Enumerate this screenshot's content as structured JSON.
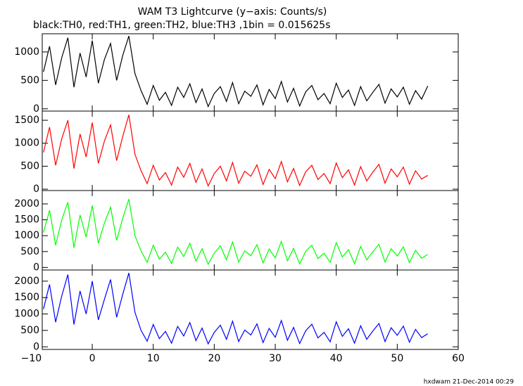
{
  "chart_data": [
    {
      "type": "line",
      "title": "WAM T3 Lightcurve (y−axis: Counts/s)",
      "subtitle": "black:TH0, red:TH1, green:TH2, blue:TH3 ,1bin = 0.015625s",
      "x": [
        -8,
        -7,
        -6,
        -5,
        -4,
        -3,
        -2,
        -1,
        0,
        1,
        2,
        3,
        4,
        5,
        6,
        7,
        8,
        9,
        10,
        11,
        12,
        13,
        14,
        15,
        16,
        17,
        18,
        19,
        20,
        21,
        22,
        23,
        24,
        25,
        26,
        27,
        28,
        29,
        30,
        31,
        32,
        33,
        34,
        35,
        36,
        37,
        38,
        39,
        40,
        41,
        42,
        43,
        44,
        45,
        46,
        47,
        48,
        49,
        50,
        51,
        52,
        53,
        54,
        55
      ],
      "values": [
        650,
        1100,
        420,
        900,
        1250,
        380,
        980,
        560,
        1200,
        450,
        870,
        1150,
        500,
        940,
        1280,
        620,
        320,
        80,
        410,
        150,
        290,
        60,
        380,
        200,
        440,
        110,
        350,
        40,
        270,
        390,
        130,
        460,
        90,
        310,
        220,
        420,
        70,
        340,
        180,
        480,
        120,
        360,
        50,
        300,
        410,
        160,
        270,
        90,
        450,
        200,
        330,
        60,
        390,
        140,
        290,
        430,
        100,
        350,
        210,
        380,
        80,
        320,
        170,
        400
      ],
      "color": "#000000",
      "xlim": [
        -8.2,
        60
      ],
      "ylim": [
        -40,
        1320
      ],
      "yticks": [
        0,
        500,
        1000
      ],
      "xticks": [
        {
          "value": -10,
          "label": "−10"
        },
        0,
        10,
        20,
        30,
        40,
        50,
        60
      ]
    },
    {
      "type": "line",
      "x": [
        -8,
        -7,
        -6,
        -5,
        -4,
        -3,
        -2,
        -1,
        0,
        1,
        2,
        3,
        4,
        5,
        6,
        7,
        8,
        9,
        10,
        11,
        12,
        13,
        14,
        15,
        16,
        17,
        18,
        19,
        20,
        21,
        22,
        23,
        24,
        25,
        26,
        27,
        28,
        29,
        30,
        31,
        32,
        33,
        34,
        35,
        36,
        37,
        38,
        39,
        40,
        41,
        42,
        43,
        44,
        45,
        46,
        47,
        48,
        49,
        50,
        51,
        52,
        53,
        54,
        55
      ],
      "values": [
        800,
        1350,
        520,
        1100,
        1500,
        450,
        1200,
        700,
        1450,
        560,
        1050,
        1400,
        620,
        1150,
        1620,
        760,
        400,
        120,
        520,
        200,
        360,
        90,
        480,
        260,
        560,
        150,
        440,
        70,
        340,
        500,
        180,
        580,
        130,
        390,
        280,
        530,
        100,
        430,
        230,
        600,
        160,
        450,
        80,
        380,
        520,
        210,
        340,
        120,
        570,
        250,
        420,
        90,
        490,
        180,
        370,
        540,
        130,
        440,
        270,
        480,
        110,
        400,
        220,
        300
      ],
      "color": "#ff0000",
      "xlim": [
        -8.2,
        60
      ],
      "ylim": [
        -30,
        1700
      ],
      "yticks": [
        0,
        500,
        1000,
        1500
      ],
      "xticks": [
        {
          "value": -10,
          "label": "−10"
        },
        0,
        10,
        20,
        30,
        40,
        50,
        60
      ]
    },
    {
      "type": "line",
      "x": [
        -8,
        -7,
        -6,
        -5,
        -4,
        -3,
        -2,
        -1,
        0,
        1,
        2,
        3,
        4,
        5,
        6,
        7,
        8,
        9,
        10,
        11,
        12,
        13,
        14,
        15,
        16,
        17,
        18,
        19,
        20,
        21,
        22,
        23,
        24,
        25,
        26,
        27,
        28,
        29,
        30,
        31,
        32,
        33,
        34,
        35,
        36,
        37,
        38,
        39,
        40,
        41,
        42,
        43,
        44,
        45,
        46,
        47,
        48,
        49,
        50,
        51,
        52,
        53,
        54,
        55
      ],
      "values": [
        1100,
        1800,
        700,
        1500,
        2050,
        620,
        1650,
        950,
        1950,
        760,
        1400,
        1900,
        850,
        1550,
        2150,
        1000,
        520,
        160,
        700,
        260,
        480,
        120,
        640,
        340,
        760,
        200,
        590,
        100,
        450,
        680,
        240,
        800,
        170,
        520,
        370,
        720,
        140,
        580,
        300,
        820,
        210,
        600,
        110,
        510,
        700,
        280,
        450,
        160,
        780,
        330,
        560,
        120,
        660,
        240,
        490,
        730,
        170,
        590,
        360,
        650,
        150,
        540,
        290,
        410
      ],
      "color": "#00ff00",
      "xlim": [
        -8.2,
        60
      ],
      "ylim": [
        -80,
        2420
      ],
      "yticks": [
        0,
        500,
        1000,
        1500,
        2000
      ],
      "xticks": [
        {
          "value": -10,
          "label": "−10"
        },
        0,
        10,
        20,
        30,
        40,
        50,
        60
      ]
    },
    {
      "type": "line",
      "x": [
        -8,
        -7,
        -6,
        -5,
        -4,
        -3,
        -2,
        -1,
        0,
        1,
        2,
        3,
        4,
        5,
        6,
        7,
        8,
        9,
        10,
        11,
        12,
        13,
        14,
        15,
        16,
        17,
        18,
        19,
        20,
        21,
        22,
        23,
        24,
        25,
        26,
        27,
        28,
        29,
        30,
        31,
        32,
        33,
        34,
        35,
        36,
        37,
        38,
        39,
        40,
        41,
        42,
        43,
        44,
        45,
        46,
        47,
        48,
        49,
        50,
        51,
        52,
        53,
        54,
        55
      ],
      "values": [
        1150,
        1900,
        750,
        1550,
        2200,
        680,
        1700,
        1000,
        2000,
        820,
        1450,
        2050,
        900,
        1600,
        2250,
        1050,
        500,
        170,
        680,
        250,
        470,
        110,
        620,
        330,
        740,
        190,
        570,
        90,
        440,
        660,
        230,
        780,
        160,
        510,
        360,
        700,
        130,
        560,
        290,
        800,
        200,
        590,
        100,
        490,
        690,
        270,
        440,
        150,
        760,
        320,
        550,
        110,
        640,
        230,
        480,
        710,
        160,
        580,
        350,
        630,
        140,
        530,
        280,
        400
      ],
      "color": "#0000ff",
      "xlim": [
        -8.2,
        60
      ],
      "ylim": [
        -80,
        2340
      ],
      "yticks": [
        0,
        500,
        1000,
        1500,
        2000
      ],
      "xticks": [
        {
          "value": -10,
          "label": "−10"
        },
        0,
        10,
        20,
        30,
        40,
        50,
        60
      ]
    }
  ],
  "footer": "hxdwam 21-Dec-2014 00:29"
}
